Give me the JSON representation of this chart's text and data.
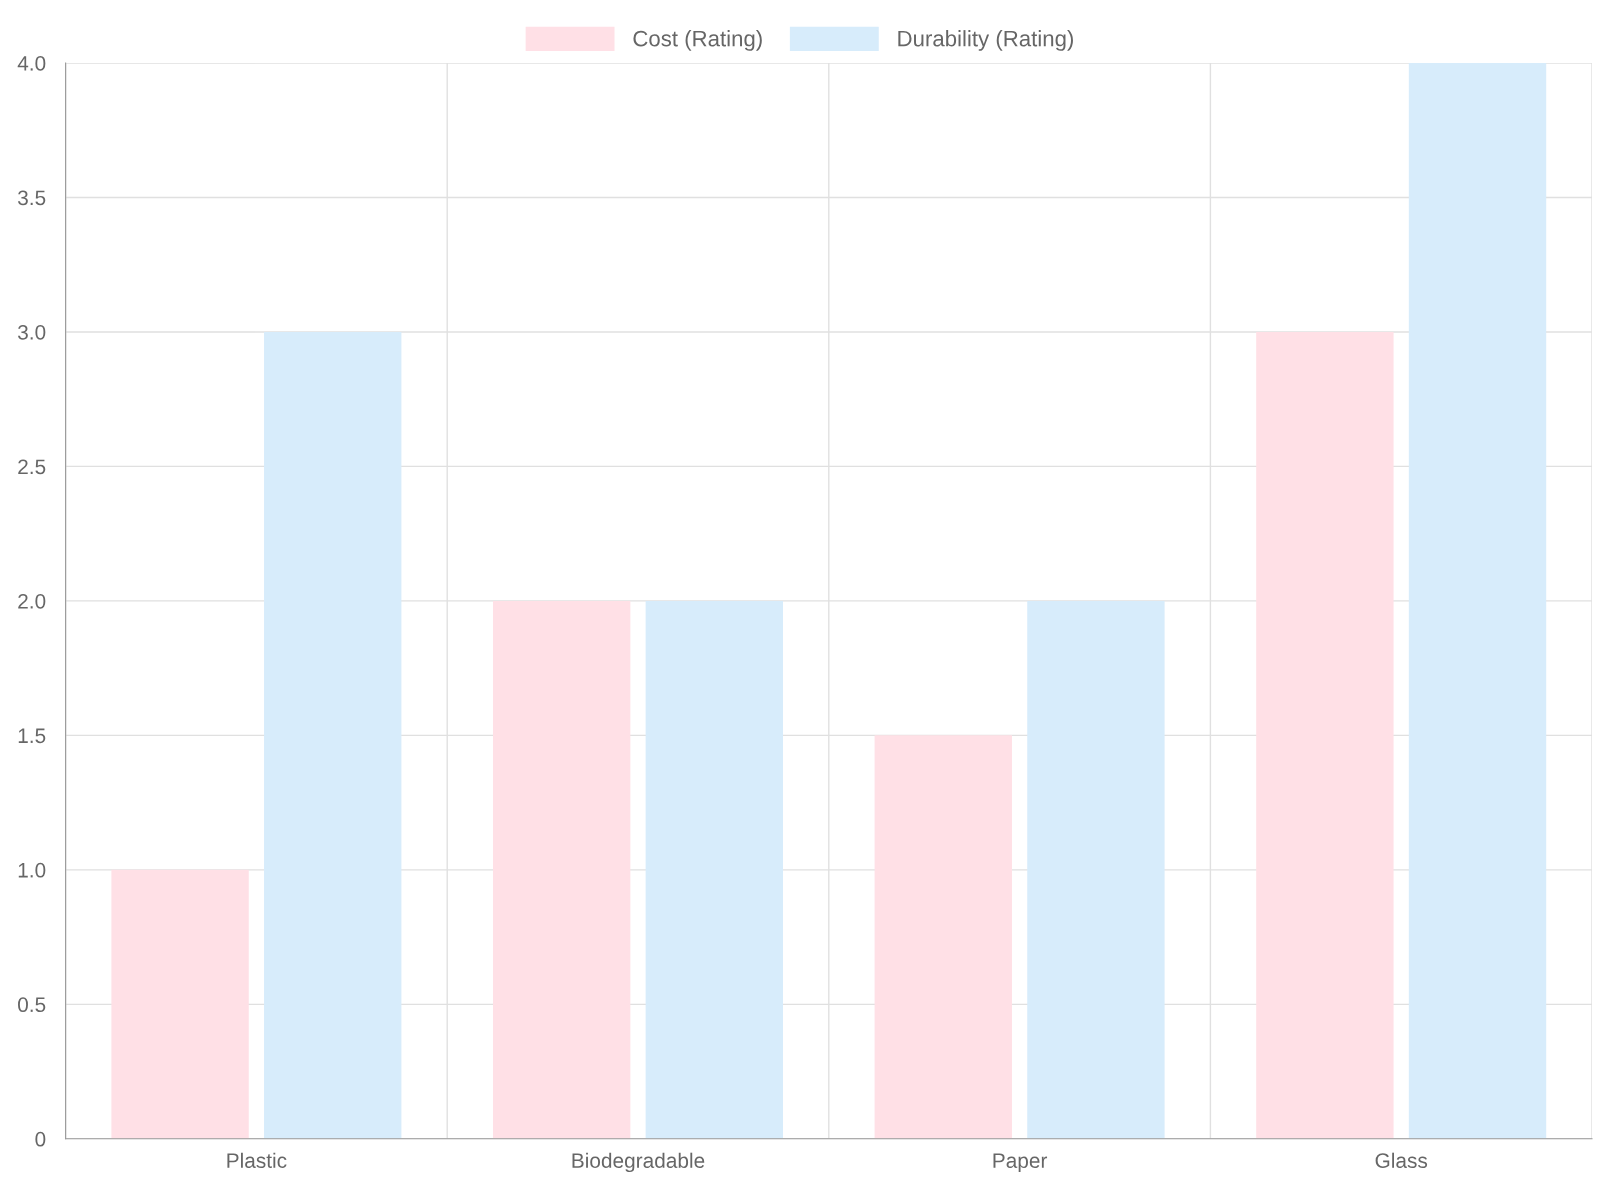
{
  "chart_data": {
    "type": "bar",
    "categories": [
      "Plastic",
      "Biodegradable",
      "Paper",
      "Glass"
    ],
    "series": [
      {
        "name": "Cost (Rating)",
        "color": "#ffe0e6",
        "values": [
          1,
          2,
          1.5,
          3
        ]
      },
      {
        "name": "Durability (Rating)",
        "color": "#d7ecfb",
        "values": [
          3,
          2,
          2,
          4
        ]
      }
    ],
    "ylim": [
      0,
      4
    ],
    "yticks": [
      0,
      0.5,
      {
        "value": 1,
        "label": "1.0"
      },
      1.5,
      {
        "value": 2,
        "label": "2.0"
      },
      2.5,
      {
        "value": 3,
        "label": "3.0"
      },
      3.5,
      {
        "value": 4,
        "label": "4.0"
      }
    ],
    "grid": true,
    "legend": "top"
  }
}
